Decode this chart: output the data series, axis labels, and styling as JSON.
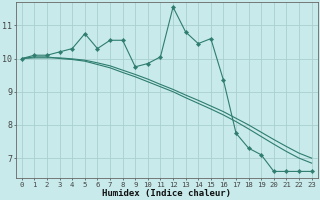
{
  "xlabel": "Humidex (Indice chaleur)",
  "x": [
    0,
    1,
    2,
    3,
    4,
    5,
    6,
    7,
    8,
    9,
    10,
    11,
    12,
    13,
    14,
    15,
    16,
    17,
    18,
    19,
    20,
    21,
    22,
    23
  ],
  "line1": [
    10.0,
    10.1,
    10.1,
    10.2,
    10.3,
    10.75,
    10.3,
    10.55,
    10.55,
    9.75,
    9.85,
    10.05,
    11.55,
    10.8,
    10.45,
    10.6,
    9.35,
    7.75,
    7.3,
    7.1,
    6.6,
    6.6,
    6.6,
    6.6
  ],
  "line2": [
    10.0,
    10.05,
    10.05,
    10.0,
    9.97,
    9.92,
    9.82,
    9.72,
    9.58,
    9.45,
    9.3,
    9.15,
    9.0,
    8.82,
    8.65,
    8.48,
    8.3,
    8.1,
    7.88,
    7.65,
    7.42,
    7.2,
    7.0,
    6.85
  ],
  "line3": [
    10.0,
    10.02,
    10.02,
    10.02,
    9.99,
    9.95,
    9.87,
    9.78,
    9.65,
    9.52,
    9.38,
    9.22,
    9.07,
    8.9,
    8.74,
    8.57,
    8.4,
    8.2,
    8.0,
    7.78,
    7.56,
    7.35,
    7.15,
    7.0
  ],
  "line_color": "#2e7d6e",
  "bg_color": "#c8eaea",
  "grid_color": "#aacfcf",
  "ylim": [
    6.4,
    11.7
  ],
  "yticks": [
    7,
    8,
    9,
    10,
    11
  ],
  "xticks": [
    0,
    1,
    2,
    3,
    4,
    5,
    6,
    7,
    8,
    9,
    10,
    11,
    12,
    13,
    14,
    15,
    16,
    17,
    18,
    19,
    20,
    21,
    22,
    23
  ]
}
